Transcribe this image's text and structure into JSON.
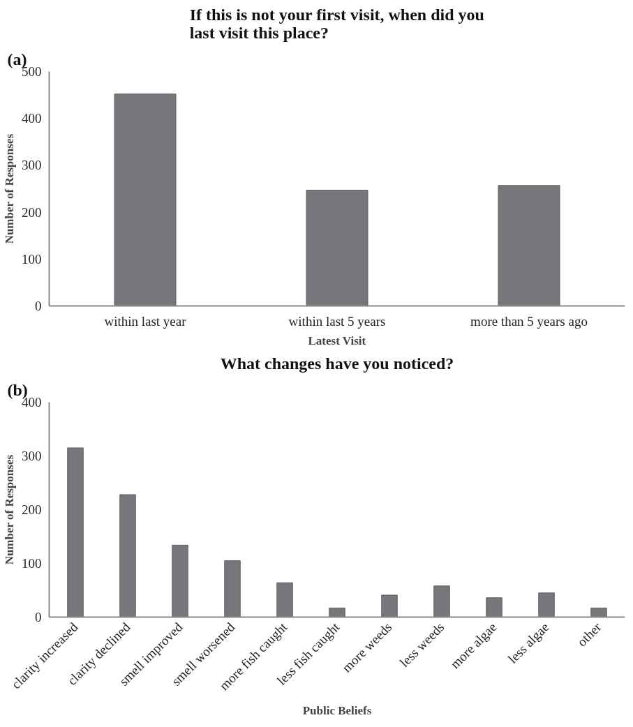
{
  "chart_data": [
    {
      "type": "bar",
      "title": "If this is not your first visit, when did you last visit this place?",
      "annotations": [
        "(a)"
      ],
      "xlabel": "Latest Visit",
      "ylabel": "Number of Responses",
      "categories": [
        "within last year",
        "within last 5 years",
        "more than 5 years ago"
      ],
      "values": [
        452,
        247,
        257
      ],
      "color": "#76777b",
      "ylim": [
        0,
        500
      ],
      "yticks": [
        0,
        100,
        200,
        300,
        400,
        500
      ],
      "grid": false
    },
    {
      "type": "bar",
      "title": "What changes have you noticed?",
      "annotations": [
        "(b)"
      ],
      "xlabel": "Public Beliefs",
      "ylabel": "Number of Responses",
      "categories": [
        "clarity increased",
        "clarity declined",
        "smell improved",
        "smell worsened",
        "more fish caught",
        "less fish caught",
        "more weeds",
        "less weeds",
        "more algae",
        "less algae",
        "other"
      ],
      "values": [
        315,
        228,
        134,
        105,
        64,
        17,
        41,
        58,
        36,
        45,
        17
      ],
      "color": "#76777b",
      "ylim": [
        0,
        400
      ],
      "yticks": [
        0,
        100,
        200,
        300,
        400
      ],
      "grid": false
    }
  ]
}
